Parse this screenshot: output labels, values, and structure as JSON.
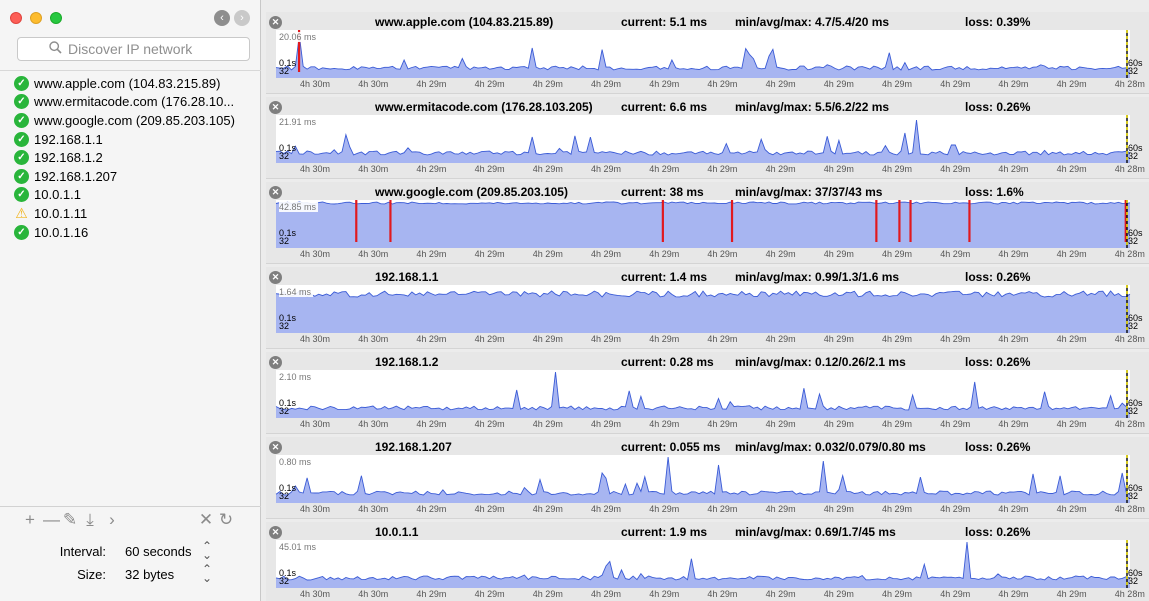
{
  "window": {
    "back_icon": "chevron-left-icon",
    "forward_icon": "chevron-right-icon"
  },
  "search": {
    "placeholder": "Discover IP network",
    "icon": "magnifier-icon"
  },
  "hosts": [
    {
      "label": "www.apple.com (104.83.215.89)",
      "status": "ok"
    },
    {
      "label": "www.ermitacode.com (176.28.10...",
      "status": "ok"
    },
    {
      "label": "www.google.com (209.85.203.105)",
      "status": "ok"
    },
    {
      "label": "192.168.1.1",
      "status": "ok"
    },
    {
      "label": "192.168.1.2",
      "status": "ok"
    },
    {
      "label": "192.168.1.207",
      "status": "ok"
    },
    {
      "label": "10.0.1.1",
      "status": "ok"
    },
    {
      "label": "10.0.1.11",
      "status": "warning"
    },
    {
      "label": "10.0.1.16",
      "status": "ok"
    }
  ],
  "toolbar": {
    "icons": [
      "plus-icon",
      "minus-icon",
      "pencil-icon",
      "pin-icon",
      "chevron-right-icon",
      "close-icon",
      "refresh-icon"
    ],
    "glyphs": [
      "+",
      "—",
      "✎",
      "⤓",
      "›",
      "✕",
      "↻"
    ]
  },
  "settings": {
    "interval_label": "Interval:",
    "interval_value": "60 seconds",
    "size_label": "Size:",
    "size_value": "32 bytes"
  },
  "colors": {
    "fill": "#a7b5f1",
    "line": "#3a5bd6",
    "loss": "#e1191e",
    "ok": "#29b53b",
    "warning": "#f1b31b"
  },
  "axis": {
    "min_label": "0.1s",
    "size_label": "32",
    "right_label": "60s",
    "ticks": [
      "4h 30m",
      "4h 30m",
      "4h 29m",
      "4h 29m",
      "4h 29m",
      "4h 29m",
      "4h 29m",
      "4h 29m",
      "4h 29m",
      "4h 29m",
      "4h 29m",
      "4h 29m",
      "4h 29m",
      "4h 29m",
      "4h 28m"
    ]
  },
  "panels": [
    {
      "host": "www.apple.com (104.83.215.89)",
      "current": "current: 5.1 ms",
      "minavgmax": "min/avg/max:  4.7/5.4/20 ms",
      "loss": "loss: 0.39%",
      "max": "20.06 ms",
      "loss_positions": [
        0.027
      ]
    },
    {
      "host": "www.ermitacode.com (176.28.103.205)",
      "current": "current: 6.6 ms",
      "minavgmax": "min/avg/max:  5.5/6.2/22 ms",
      "loss": "loss: 0.26%",
      "max": "21.91 ms",
      "loss_positions": []
    },
    {
      "host": "www.google.com (209.85.203.105)",
      "current": "current: 38 ms",
      "minavgmax": "min/avg/max:  37/37/43 ms",
      "loss": "loss: 1.6%",
      "max": "42.85 ms",
      "loss_positions": [
        0.094,
        0.134,
        0.453,
        0.534,
        0.703,
        0.73,
        0.743,
        0.812,
        0.995
      ]
    },
    {
      "host": "192.168.1.1",
      "current": "current: 1.4 ms",
      "minavgmax": "min/avg/max:  0.99/1.3/1.6 ms",
      "loss": "loss: 0.26%",
      "max": "1.64 ms",
      "loss_positions": []
    },
    {
      "host": "192.168.1.2",
      "current": "current: 0.28 ms",
      "minavgmax": "min/avg/max:  0.12/0.26/2.1 ms",
      "loss": "loss: 0.26%",
      "max": "2.10 ms",
      "loss_positions": []
    },
    {
      "host": "192.168.1.207",
      "current": "current: 0.055 ms",
      "minavgmax": "min/avg/max:  0.032/0.079/0.80 ms",
      "loss": "loss: 0.26%",
      "max": "0.80 ms",
      "loss_positions": []
    },
    {
      "host": "10.0.1.1",
      "current": "current: 1.9 ms",
      "minavgmax": "min/avg/max:  0.69/1.7/45 ms",
      "loss": "loss: 0.26%",
      "max": "45.01 ms",
      "loss_positions": []
    }
  ]
}
